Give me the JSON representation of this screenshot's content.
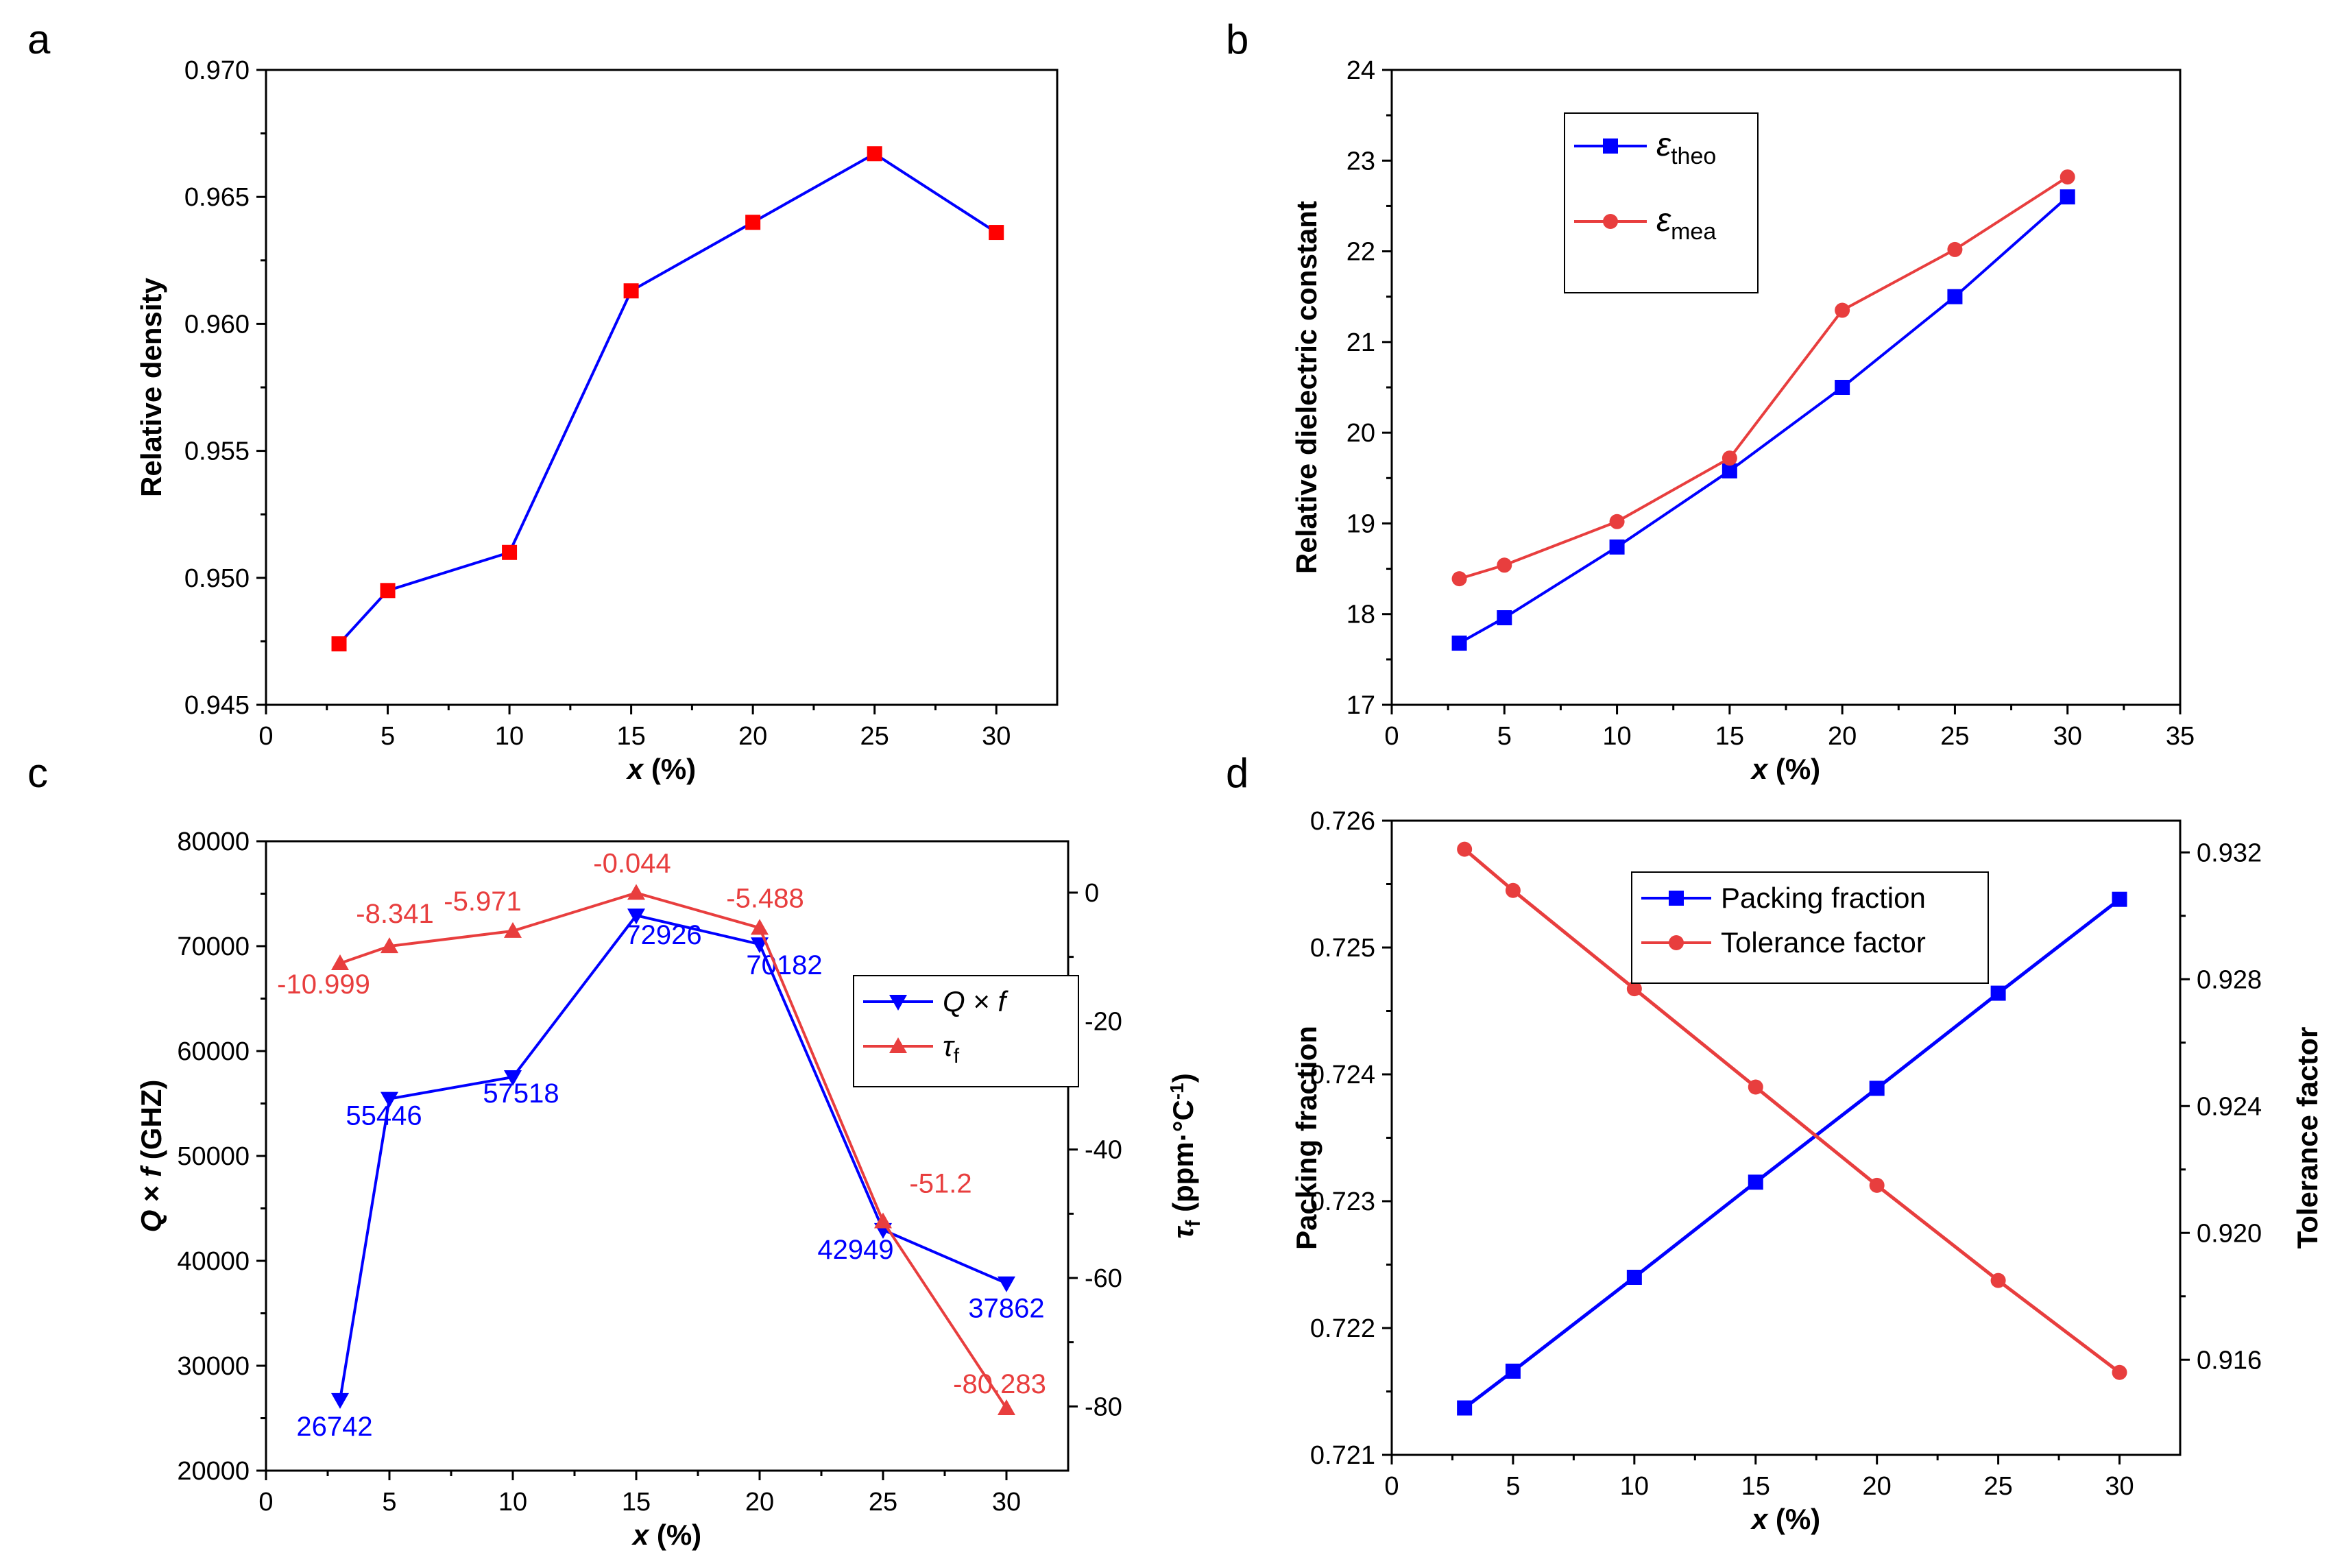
{
  "panels": [
    {
      "letter": "a",
      "type": "line",
      "xlabel_var": "x",
      "xlabel_unit": " (%)",
      "ylabel": "Relative density",
      "xlim": [
        0,
        32.5
      ],
      "ylim": [
        0.945,
        0.97
      ],
      "xticks": [
        0,
        5,
        10,
        15,
        20,
        25,
        30
      ],
      "yticks": [
        0.945,
        0.95,
        0.955,
        0.96,
        0.965,
        0.97
      ],
      "ytick_labels": [
        "0.945",
        "0.950",
        "0.955",
        "0.960",
        "0.965",
        "0.970"
      ],
      "legend": null,
      "series": [
        {
          "name": "",
          "axis": "left",
          "line_color": "#0000ff",
          "marker_color": "#ff0000",
          "marker": "square",
          "x": [
            3,
            5,
            10,
            15,
            20,
            25,
            30
          ],
          "y": [
            0.9474,
            0.9495,
            0.951,
            0.9613,
            0.964,
            0.9667,
            0.9636
          ]
        }
      ]
    },
    {
      "letter": "b",
      "type": "line",
      "xlabel_var": "x",
      "xlabel_unit": " (%)",
      "ylabel": "Relative dielectric constant",
      "xlim": [
        0,
        35
      ],
      "ylim": [
        17,
        24
      ],
      "xticks": [
        0,
        5,
        10,
        15,
        20,
        25,
        30,
        35
      ],
      "yticks": [
        17,
        18,
        19,
        20,
        21,
        22,
        23,
        24
      ],
      "ytick_labels": [
        "17",
        "18",
        "19",
        "20",
        "21",
        "22",
        "23",
        "24"
      ],
      "legend": "top-left",
      "series": [
        {
          "name": "ε",
          "sub": "theo",
          "axis": "left",
          "line_color": "#0000ff",
          "marker_color": "#0000ff",
          "marker": "square",
          "x": [
            3,
            5,
            10,
            15,
            20,
            25,
            30
          ],
          "y": [
            17.68,
            17.96,
            18.74,
            19.58,
            20.5,
            21.5,
            22.6
          ]
        },
        {
          "name": "ε",
          "sub": "mea",
          "axis": "left",
          "line_color": "#e83e3e",
          "marker_color": "#e83e3e",
          "marker": "circle",
          "x": [
            3,
            5,
            10,
            15,
            20,
            25,
            30
          ],
          "y": [
            18.39,
            18.54,
            19.02,
            19.72,
            21.35,
            22.02,
            22.82
          ]
        }
      ]
    },
    {
      "letter": "c",
      "type": "line",
      "xlabel_var": "x",
      "xlabel_unit": " (%)",
      "ylabel_parts": [
        "Q",
        " × ",
        "f",
        " (GHZ)"
      ],
      "y2label_parts": [
        "τ",
        "f",
        " (ppm·°C",
        "-1",
        ")"
      ],
      "xlim": [
        0,
        32.5
      ],
      "ylim": [
        20000,
        80000
      ],
      "y2lim": [
        -90,
        8
      ],
      "xticks": [
        0,
        5,
        10,
        15,
        20,
        25,
        30
      ],
      "yticks": [
        20000,
        30000,
        40000,
        50000,
        60000,
        70000,
        80000
      ],
      "ytick_labels": [
        "20000",
        "30000",
        "40000",
        "50000",
        "60000",
        "70000",
        "80000"
      ],
      "y2ticks": [
        -80,
        -60,
        -40,
        -20,
        0
      ],
      "y2tick_labels": [
        "-80",
        "-60",
        "-40",
        "-20",
        "0"
      ],
      "legend": "right",
      "series": [
        {
          "name_parts": [
            "Q",
            " × ",
            "f"
          ],
          "axis": "left",
          "line_color": "#0000ff",
          "marker_color": "#0000ff",
          "marker": "triangle-down",
          "x": [
            3,
            5,
            10,
            15,
            20,
            25,
            30
          ],
          "y": [
            26742,
            55446,
            57518,
            72926,
            70182,
            42949,
            37862
          ],
          "labels": [
            "26742",
            "55446",
            "57518",
            "72926",
            "70182",
            "42949",
            "37862"
          ]
        },
        {
          "name_parts": [
            "τ",
            "f"
          ],
          "axis": "right",
          "line_color": "#e83e3e",
          "marker_color": "#e83e3e",
          "marker": "triangle-up",
          "x": [
            3,
            5,
            10,
            15,
            20,
            25,
            30
          ],
          "y": [
            -10.999,
            -8.341,
            -5.971,
            -0.044,
            -5.488,
            -51.2,
            -80.283
          ],
          "labels": [
            "-10.999",
            "-8.341",
            "-5.971",
            "-0.044",
            "-5.488",
            "-51.2",
            "-80.283"
          ]
        }
      ]
    },
    {
      "letter": "d",
      "type": "line",
      "xlabel_var": "x",
      "xlabel_unit": " (%)",
      "ylabel": "Packing fraction",
      "y2label": "Tolerance factor",
      "xlim": [
        0,
        32.5
      ],
      "ylim": [
        0.721,
        0.726
      ],
      "y2lim": [
        0.913,
        0.933
      ],
      "xticks": [
        0,
        5,
        10,
        15,
        20,
        25,
        30
      ],
      "yticks": [
        0.721,
        0.722,
        0.723,
        0.724,
        0.725,
        0.726
      ],
      "ytick_labels": [
        "0.721",
        "0.722",
        "0.723",
        "0.724",
        "0.725",
        "0.726"
      ],
      "y2ticks": [
        0.916,
        0.92,
        0.924,
        0.928,
        0.932
      ],
      "y2tick_labels": [
        "0.916",
        "0.920",
        "0.924",
        "0.928",
        "0.932"
      ],
      "legend": "top-center",
      "series": [
        {
          "name": "Packing fraction",
          "axis": "left",
          "line_color": "#0000ff",
          "marker_color": "#0000ff",
          "marker": "square",
          "x": [
            3,
            5,
            10,
            15,
            20,
            25,
            30
          ],
          "y": [
            0.72137,
            0.72166,
            0.7224,
            0.72315,
            0.72389,
            0.72464,
            0.72538
          ]
        },
        {
          "name": "Tolerance factor",
          "axis": "right",
          "line_color": "#e83e3e",
          "marker_color": "#e83e3e",
          "marker": "circle",
          "x": [
            3,
            5,
            10,
            15,
            20,
            25,
            30
          ],
          "y": [
            0.9321,
            0.9308,
            0.9277,
            0.9246,
            0.9215,
            0.9185,
            0.9156
          ]
        }
      ]
    }
  ]
}
